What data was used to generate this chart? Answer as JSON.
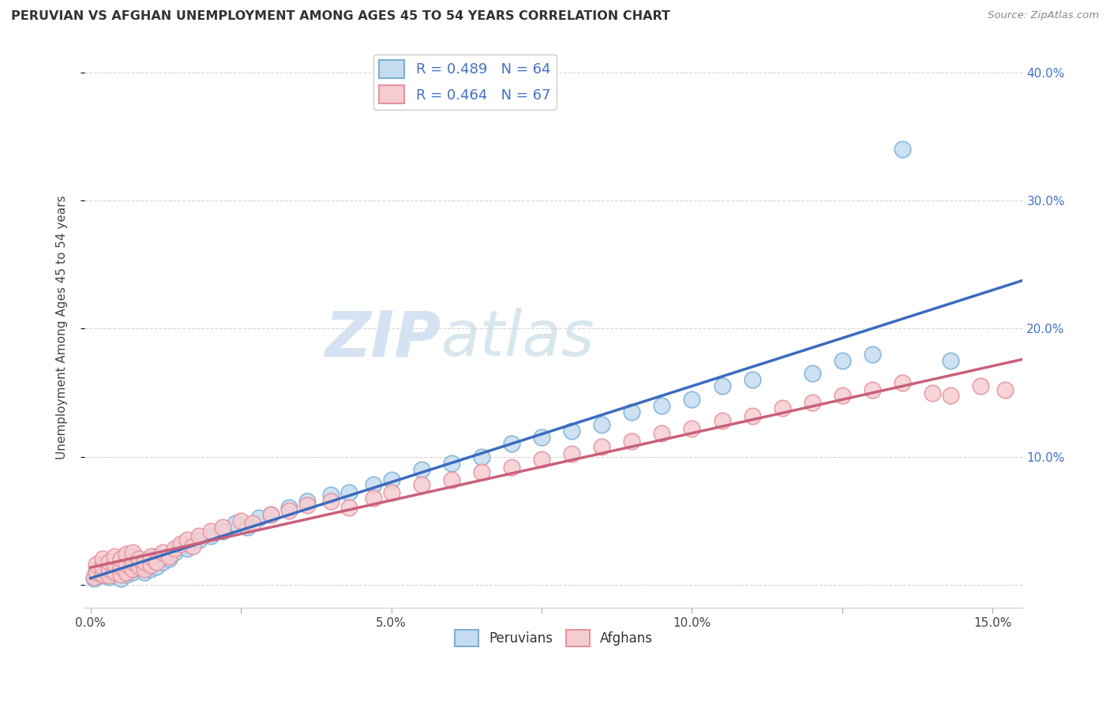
{
  "title": "PERUVIAN VS AFGHAN UNEMPLOYMENT AMONG AGES 45 TO 54 YEARS CORRELATION CHART",
  "source": "Source: ZipAtlas.com",
  "ylabel_label": "Unemployment Among Ages 45 to 54 years",
  "xlim": [
    -0.001,
    0.155
  ],
  "ylim": [
    -0.018,
    0.42
  ],
  "xticks": [
    0.0,
    0.025,
    0.05,
    0.075,
    0.1,
    0.125,
    0.15
  ],
  "xtick_labels": [
    "0.0%",
    "",
    "5.0%",
    "",
    "10.0%",
    "",
    "15.0%"
  ],
  "yticks": [
    0.0,
    0.1,
    0.2,
    0.3,
    0.4
  ],
  "ytick_labels_right": [
    "",
    "10.0%",
    "20.0%",
    "30.0%",
    "40.0%"
  ],
  "peruvian_color": "#7bafd4",
  "peruvian_face": "#c5dcf0",
  "afghan_color": "#e8919e",
  "afghan_face": "#f5cdd1",
  "line_blue": "#3a6bbf",
  "line_pink": "#c9607a",
  "peruvian_R": 0.489,
  "peruvian_N": 64,
  "afghan_R": 0.464,
  "afghan_N": 67,
  "legend_label_1": "Peruvians",
  "legend_label_2": "Afghans",
  "watermark_zip": "ZIP",
  "watermark_atlas": "atlas",
  "peruvian_x": [
    0.0005,
    0.001,
    0.001,
    0.002,
    0.002,
    0.002,
    0.003,
    0.003,
    0.003,
    0.004,
    0.004,
    0.004,
    0.005,
    0.005,
    0.005,
    0.005,
    0.006,
    0.006,
    0.007,
    0.007,
    0.007,
    0.008,
    0.008,
    0.009,
    0.009,
    0.01,
    0.01,
    0.011,
    0.011,
    0.012,
    0.013,
    0.014,
    0.015,
    0.016,
    0.018,
    0.02,
    0.022,
    0.024,
    0.026,
    0.028,
    0.03,
    0.033,
    0.036,
    0.04,
    0.043,
    0.047,
    0.05,
    0.055,
    0.06,
    0.065,
    0.07,
    0.075,
    0.08,
    0.085,
    0.09,
    0.095,
    0.1,
    0.105,
    0.11,
    0.12,
    0.125,
    0.13,
    0.135,
    0.143
  ],
  "peruvian_y": [
    0.005,
    0.008,
    0.012,
    0.007,
    0.01,
    0.015,
    0.006,
    0.01,
    0.014,
    0.008,
    0.013,
    0.018,
    0.005,
    0.01,
    0.015,
    0.02,
    0.008,
    0.014,
    0.01,
    0.016,
    0.022,
    0.012,
    0.018,
    0.01,
    0.016,
    0.012,
    0.02,
    0.014,
    0.022,
    0.018,
    0.02,
    0.025,
    0.03,
    0.028,
    0.035,
    0.038,
    0.042,
    0.048,
    0.045,
    0.052,
    0.055,
    0.06,
    0.065,
    0.07,
    0.072,
    0.078,
    0.082,
    0.09,
    0.095,
    0.1,
    0.11,
    0.115,
    0.12,
    0.125,
    0.135,
    0.14,
    0.145,
    0.155,
    0.16,
    0.165,
    0.175,
    0.18,
    0.34,
    0.175
  ],
  "afghan_x": [
    0.0005,
    0.001,
    0.001,
    0.002,
    0.002,
    0.002,
    0.003,
    0.003,
    0.003,
    0.004,
    0.004,
    0.004,
    0.005,
    0.005,
    0.005,
    0.006,
    0.006,
    0.006,
    0.007,
    0.007,
    0.007,
    0.008,
    0.008,
    0.009,
    0.009,
    0.01,
    0.01,
    0.011,
    0.012,
    0.013,
    0.014,
    0.015,
    0.016,
    0.017,
    0.018,
    0.02,
    0.022,
    0.025,
    0.027,
    0.03,
    0.033,
    0.036,
    0.04,
    0.043,
    0.047,
    0.05,
    0.055,
    0.06,
    0.065,
    0.07,
    0.075,
    0.08,
    0.085,
    0.09,
    0.095,
    0.1,
    0.105,
    0.11,
    0.115,
    0.12,
    0.125,
    0.13,
    0.135,
    0.14,
    0.143,
    0.148,
    0.152
  ],
  "afghan_y": [
    0.006,
    0.01,
    0.016,
    0.008,
    0.014,
    0.02,
    0.007,
    0.012,
    0.018,
    0.01,
    0.016,
    0.022,
    0.008,
    0.014,
    0.02,
    0.01,
    0.016,
    0.024,
    0.012,
    0.018,
    0.025,
    0.014,
    0.02,
    0.012,
    0.018,
    0.015,
    0.022,
    0.018,
    0.025,
    0.022,
    0.028,
    0.032,
    0.035,
    0.03,
    0.038,
    0.042,
    0.045,
    0.05,
    0.048,
    0.055,
    0.058,
    0.062,
    0.065,
    0.06,
    0.068,
    0.072,
    0.078,
    0.082,
    0.088,
    0.092,
    0.098,
    0.102,
    0.108,
    0.112,
    0.118,
    0.122,
    0.128,
    0.132,
    0.138,
    0.142,
    0.148,
    0.152,
    0.158,
    0.15,
    0.148,
    0.155,
    0.152
  ]
}
